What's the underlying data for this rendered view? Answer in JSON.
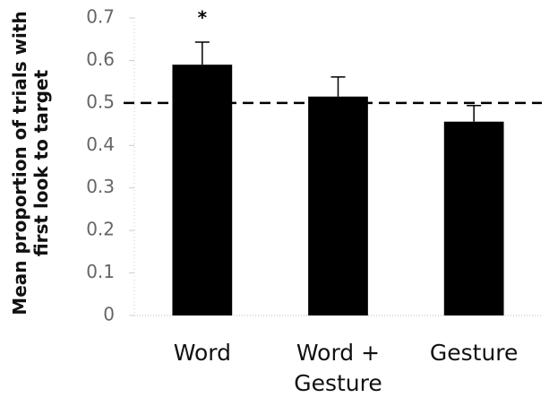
{
  "chart_data": {
    "type": "bar",
    "ylabel": [
      "Mean proportion of trials with",
      "first look to target"
    ],
    "categories": [
      "Word",
      "Word + Gesture",
      "Gesture"
    ],
    "values": [
      0.59,
      0.515,
      0.456
    ],
    "errors": [
      0.053,
      0.046,
      0.038
    ],
    "color": "#000000",
    "ylim": [
      0,
      0.7
    ],
    "yticks": [
      0,
      0.1,
      0.2,
      0.3,
      0.4,
      0.5,
      0.6,
      0.7
    ],
    "reference_line": 0.5,
    "annotations": [
      {
        "text": "*",
        "category": 0
      }
    ]
  }
}
